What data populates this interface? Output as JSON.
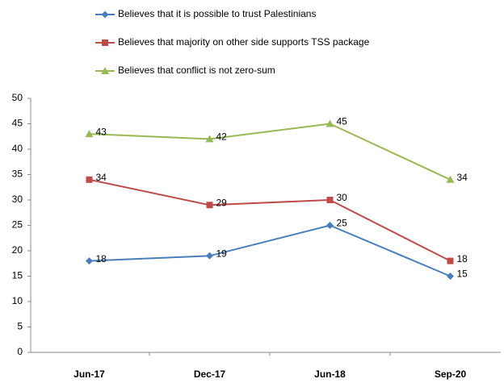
{
  "chart_data": {
    "type": "line",
    "categories": [
      "Jun-17",
      "Dec-17",
      "Jun-18",
      "Sep-20"
    ],
    "series": [
      {
        "name": "Believes that it is possible to trust Palestinians",
        "color": "#4a7ebb",
        "marker": "diamond",
        "values": [
          18,
          19,
          25,
          15
        ]
      },
      {
        "name": "Believes that majority on other side supports TSS package",
        "color": "#be4b48",
        "marker": "square",
        "values": [
          34,
          29,
          30,
          18
        ]
      },
      {
        "name": "Believes that conflict is not zero-sum",
        "color": "#98b954",
        "marker": "triangle",
        "values": [
          43,
          42,
          45,
          34
        ]
      }
    ],
    "ylim": [
      0,
      50
    ],
    "yticks": [
      0,
      5,
      10,
      15,
      20,
      25,
      30,
      35,
      40,
      45,
      50
    ],
    "grid": false,
    "legend": "top",
    "data_labels": true
  }
}
